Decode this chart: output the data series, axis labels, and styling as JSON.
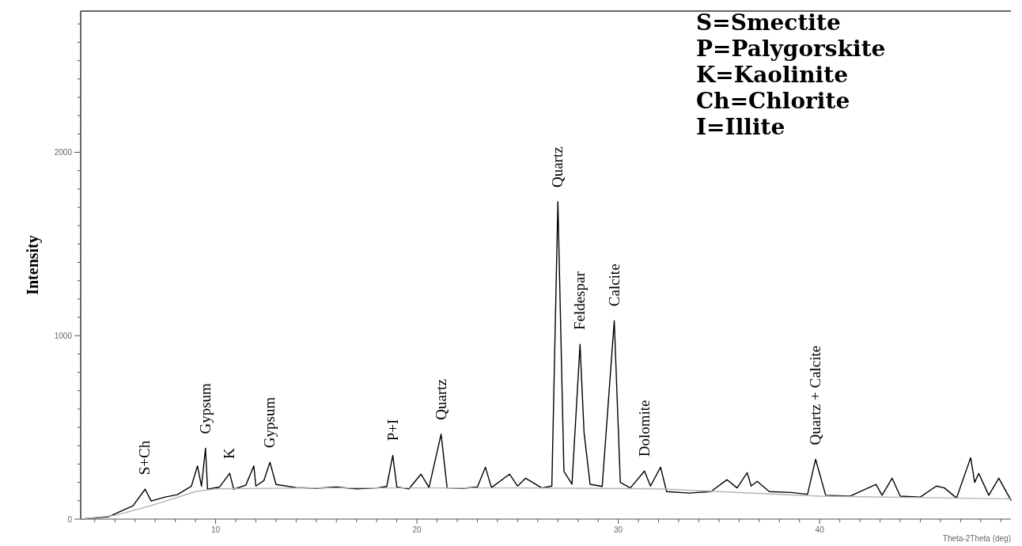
{
  "chart_data": {
    "type": "line",
    "xlabel": "Theta-2Theta (deg)",
    "ylabel": "Intensity",
    "xlim": [
      3.3,
      49.5
    ],
    "ylim": [
      0,
      2770
    ],
    "xticks": [
      {
        "value": 4,
        "label": null
      },
      {
        "value": 5,
        "label": null
      },
      {
        "value": 6,
        "label": null
      },
      {
        "value": 7,
        "label": null
      },
      {
        "value": 8,
        "label": null
      },
      {
        "value": 9,
        "label": null
      },
      10,
      {
        "value": 11,
        "label": null
      },
      {
        "value": 12,
        "label": null
      },
      {
        "value": 13,
        "label": null
      },
      {
        "value": 14,
        "label": null
      },
      {
        "value": 15,
        "label": null
      },
      {
        "value": 16,
        "label": null
      },
      {
        "value": 17,
        "label": null
      },
      {
        "value": 18,
        "label": null
      },
      {
        "value": 19,
        "label": null
      },
      20,
      {
        "value": 21,
        "label": null
      },
      {
        "value": 22,
        "label": null
      },
      {
        "value": 23,
        "label": null
      },
      {
        "value": 24,
        "label": null
      },
      {
        "value": 25,
        "label": null
      },
      {
        "value": 26,
        "label": null
      },
      {
        "value": 27,
        "label": null
      },
      {
        "value": 28,
        "label": null
      },
      {
        "value": 29,
        "label": null
      },
      30,
      {
        "value": 31,
        "label": null
      },
      {
        "value": 32,
        "label": null
      },
      {
        "value": 33,
        "label": null
      },
      {
        "value": 34,
        "label": null
      },
      {
        "value": 35,
        "label": null
      },
      {
        "value": 36,
        "label": null
      },
      {
        "value": 37,
        "label": null
      },
      {
        "value": 38,
        "label": null
      },
      {
        "value": 39,
        "label": null
      },
      40,
      {
        "value": 41,
        "label": null
      },
      {
        "value": 42,
        "label": null
      },
      {
        "value": 43,
        "label": null
      },
      {
        "value": 44,
        "label": null
      },
      {
        "value": 45,
        "label": null
      },
      {
        "value": 46,
        "label": null
      },
      {
        "value": 47,
        "label": null
      },
      {
        "value": 48,
        "label": null
      },
      {
        "value": 49,
        "label": null
      }
    ],
    "yticks": [
      0,
      {
        "value": 100,
        "label": null
      },
      {
        "value": 200,
        "label": null
      },
      {
        "value": 300,
        "label": null
      },
      {
        "value": 400,
        "label": null
      },
      {
        "value": 500,
        "label": null
      },
      {
        "value": 600,
        "label": null
      },
      {
        "value": 700,
        "label": null
      },
      {
        "value": 800,
        "label": null
      },
      {
        "value": 900,
        "label": null
      },
      1000,
      {
        "value": 1100,
        "label": null
      },
      {
        "value": 1200,
        "label": null
      },
      {
        "value": 1300,
        "label": null
      },
      {
        "value": 1400,
        "label": null
      },
      {
        "value": 1500,
        "label": null
      },
      {
        "value": 1600,
        "label": null
      },
      {
        "value": 1700,
        "label": null
      },
      {
        "value": 1800,
        "label": null
      },
      {
        "value": 1900,
        "label": null
      },
      2000,
      {
        "value": 2100,
        "label": null
      },
      {
        "value": 2200,
        "label": null
      },
      {
        "value": 2300,
        "label": null
      },
      {
        "value": 2400,
        "label": null
      },
      {
        "value": 2500,
        "label": null
      },
      {
        "value": 2600,
        "label": null
      },
      {
        "value": 2700,
        "label": null
      }
    ],
    "series": [
      {
        "color": "#000000",
        "x": [
          3.3,
          4.7,
          5.9,
          6.5,
          6.8,
          7.5,
          8.1,
          8.8,
          9.1,
          9.3,
          9.5,
          9.6,
          10.2,
          10.7,
          10.9,
          11.5,
          11.9,
          12.0,
          12.4,
          12.7,
          13.0,
          14.0,
          15.0,
          16.0,
          17.0,
          18.0,
          18.5,
          18.8,
          19.0,
          19.6,
          20.2,
          20.6,
          21.2,
          21.5,
          22.3,
          23.0,
          23.4,
          23.7,
          24.6,
          25.0,
          25.4,
          26.2,
          26.7,
          27.0,
          27.3,
          27.7,
          28.1,
          28.3,
          28.6,
          29.2,
          29.8,
          30.1,
          30.6,
          31.3,
          31.6,
          32.1,
          32.4,
          33.5,
          34.6,
          35.4,
          35.9,
          36.4,
          36.6,
          36.9,
          37.5,
          38.6,
          39.4,
          39.8,
          40.3,
          41.5,
          42.8,
          43.1,
          43.6,
          44.0,
          45.0,
          45.8,
          46.2,
          46.8,
          47.5,
          47.7,
          47.9,
          48.4,
          48.9,
          49.5
        ],
        "values": [
          0,
          13,
          73,
          163,
          99,
          120,
          133,
          180,
          290,
          180,
          386,
          163,
          175,
          250,
          163,
          185,
          290,
          180,
          210,
          310,
          189,
          172,
          168,
          175,
          165,
          170,
          178,
          348,
          175,
          165,
          245,
          172,
          463,
          170,
          168,
          175,
          283,
          172,
          245,
          180,
          223,
          170,
          180,
          1730,
          260,
          190,
          953,
          472,
          190,
          178,
          1082,
          200,
          170,
          262,
          180,
          283,
          150,
          142,
          150,
          215,
          170,
          253,
          180,
          206,
          150,
          145,
          135,
          326,
          130,
          125,
          189,
          130,
          223,
          125,
          120,
          180,
          170,
          115,
          335,
          200,
          249,
          130,
          223,
          103
        ]
      },
      {
        "color": "#b5b5b5",
        "x": [
          3.3,
          5,
          7,
          9,
          10,
          15,
          25,
          32,
          40,
          49.5
        ],
        "values": [
          0,
          20,
          80,
          150,
          165,
          170,
          170,
          165,
          125,
          110
        ]
      }
    ],
    "annotations": [
      "S=Smectite",
      "P=Palygorskite",
      "K=Kaolinite",
      "Ch=Chlorite",
      "I=Illite",
      {
        "text": "S+Ch",
        "x": 6.5,
        "y": 163
      },
      {
        "text": "Gypsum",
        "x": 9.5,
        "y": 386
      },
      {
        "text": "K",
        "x": 10.7,
        "y": 250
      },
      {
        "text": "Gypsum",
        "x": 12.7,
        "y": 310
      },
      {
        "text": "P+I",
        "x": 18.8,
        "y": 348
      },
      {
        "text": "Quartz",
        "x": 21.2,
        "y": 463
      },
      {
        "text": "Quartz",
        "x": 27.0,
        "y": 1730
      },
      {
        "text": "Feldespar",
        "x": 28.1,
        "y": 953
      },
      {
        "text": "Calcite",
        "x": 29.8,
        "y": 1082
      },
      {
        "text": "Dolomite",
        "x": 31.3,
        "y": 262
      },
      {
        "text": "Quartz + Calcite",
        "x": 39.8,
        "y": 326
      }
    ]
  }
}
